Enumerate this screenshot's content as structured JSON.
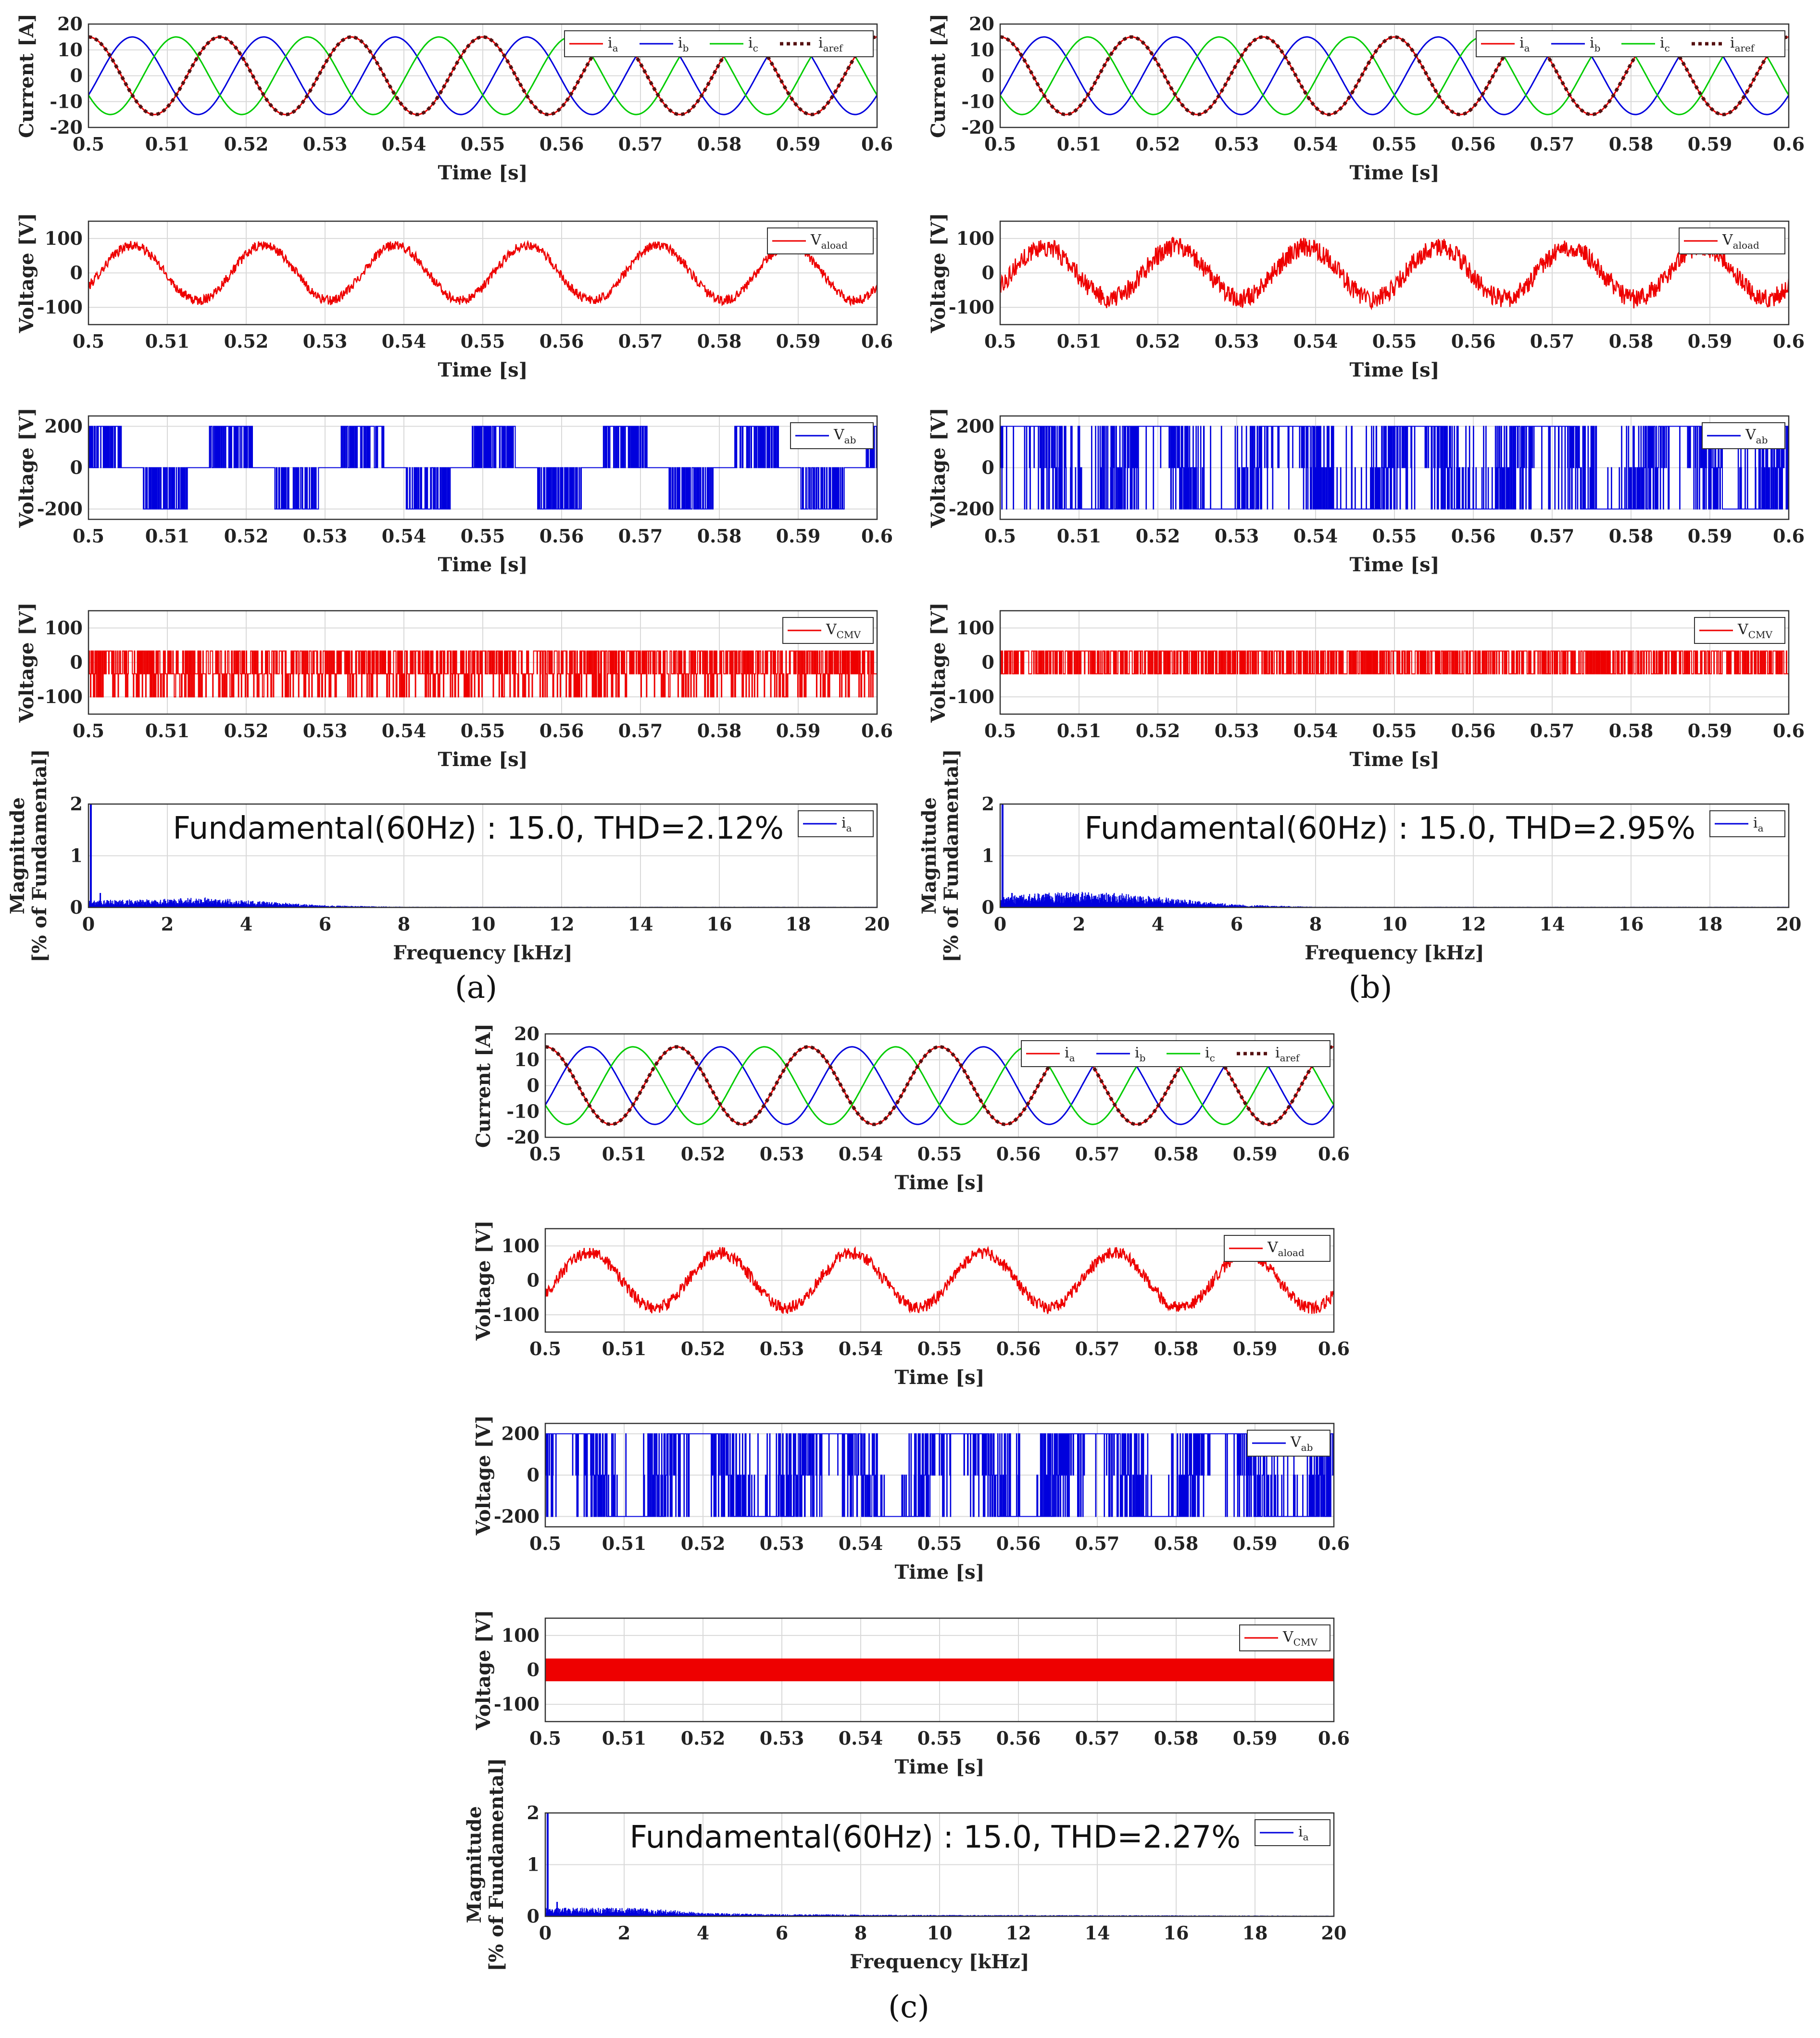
{
  "colors": {
    "red": "#ee0000",
    "blue": "#0000dd",
    "green": "#00cc00",
    "dark": "#551111",
    "grid": "#d9d9d9"
  },
  "figure": {
    "panel_labels": [
      "(a)",
      "(b)",
      "(c)"
    ]
  },
  "chart_data": [
    {
      "panel": "a",
      "row": 0,
      "type": "line",
      "xlabel": "Time [s]",
      "ylabel": "Current [A]",
      "xlim": [
        0.5,
        0.6
      ],
      "ylim": [
        -20,
        20
      ],
      "xticks": [
        "0.5",
        "0.51",
        "0.52",
        "0.53",
        "0.54",
        "0.55",
        "0.56",
        "0.57",
        "0.58",
        "0.59",
        "0.6"
      ],
      "yticks": [
        {
          "v": 20,
          "t": "20"
        },
        {
          "v": 10,
          "t": "10"
        },
        {
          "v": 0,
          "t": "0"
        },
        {
          "v": -10,
          "t": "-10"
        },
        {
          "v": -20,
          "t": "-20"
        }
      ],
      "series": [
        {
          "name": "i_a",
          "label": "i",
          "sub": "a",
          "color": "red",
          "kind": "sine",
          "amp": 15,
          "freq": 60,
          "phase": 90,
          "width": 3
        },
        {
          "name": "i_b",
          "label": "i",
          "sub": "b",
          "color": "blue",
          "kind": "sine",
          "amp": 15,
          "freq": 60,
          "phase": -30,
          "width": 3
        },
        {
          "name": "i_c",
          "label": "i",
          "sub": "c",
          "color": "green",
          "kind": "sine",
          "amp": 15,
          "freq": 60,
          "phase": 210,
          "width": 3
        },
        {
          "name": "i_aref",
          "label": "i",
          "sub": "aref",
          "color": "dark",
          "kind": "sine",
          "amp": 15,
          "freq": 60,
          "phase": 90,
          "width": 7,
          "dash": "7 7"
        }
      ]
    },
    {
      "panel": "a",
      "row": 1,
      "type": "line",
      "xlabel": "Time [s]",
      "ylabel": "Voltage [V]",
      "xlim": [
        0.5,
        0.6
      ],
      "ylim": [
        -150,
        150
      ],
      "xticks": [
        "0.5",
        "0.51",
        "0.52",
        "0.53",
        "0.54",
        "0.55",
        "0.56",
        "0.57",
        "0.58",
        "0.59",
        "0.6"
      ],
      "yticks": [
        {
          "v": 100,
          "t": "100"
        },
        {
          "v": 0,
          "t": "0"
        },
        {
          "v": -100,
          "t": "-100"
        }
      ],
      "series": [
        {
          "name": "V_aload",
          "label": "V",
          "sub": "aload",
          "color": "red",
          "kind": "noisy_sine",
          "amp": 80,
          "freq": 60,
          "phase": -30,
          "noise": 14
        }
      ]
    },
    {
      "panel": "a",
      "row": 2,
      "type": "line",
      "xlabel": "Time [s]",
      "ylabel": "Voltage [V]",
      "xlim": [
        0.5,
        0.6
      ],
      "ylim": [
        -250,
        250
      ],
      "xticks": [
        "0.5",
        "0.51",
        "0.52",
        "0.53",
        "0.54",
        "0.55",
        "0.56",
        "0.57",
        "0.58",
        "0.59",
        "0.6"
      ],
      "yticks": [
        {
          "v": 200,
          "t": "200"
        },
        {
          "v": 0,
          "t": "0"
        },
        {
          "v": -200,
          "t": "-200"
        }
      ],
      "series": [
        {
          "name": "V_ab",
          "label": "V",
          "sub": "ab",
          "color": "blue",
          "kind": "six_step",
          "level": 200,
          "freq": 60,
          "phase": 0,
          "mode": "a"
        }
      ]
    },
    {
      "panel": "a",
      "row": 3,
      "type": "line",
      "xlabel": "Time [s]",
      "ylabel": "Voltage [V]",
      "xlim": [
        0.5,
        0.6
      ],
      "ylim": [
        -150,
        150
      ],
      "xticks": [
        "0.5",
        "0.51",
        "0.52",
        "0.53",
        "0.54",
        "0.55",
        "0.56",
        "0.57",
        "0.58",
        "0.59",
        "0.6"
      ],
      "yticks": [
        {
          "v": 100,
          "t": "100"
        },
        {
          "v": 0,
          "t": "0"
        },
        {
          "v": -100,
          "t": "-100"
        }
      ],
      "series": [
        {
          "name": "V_CMV",
          "label": "V",
          "sub": "CMV",
          "color": "red",
          "kind": "pwm_levels",
          "levels": [
            33,
            -33,
            -100
          ],
          "probs": [
            0.45,
            0.35,
            0.2
          ]
        }
      ]
    },
    {
      "panel": "a",
      "row": 4,
      "type": "spectrum",
      "xlabel": "Frequency [kHz]",
      "ylabel": "Magnitude\n[% of Fundamental]",
      "xlim": [
        0,
        20
      ],
      "ylim": [
        0,
        2
      ],
      "xticks": [
        "0",
        "2",
        "4",
        "6",
        "8",
        "10",
        "12",
        "14",
        "16",
        "18",
        "20"
      ],
      "yticks": [
        {
          "v": 2,
          "t": "2"
        },
        {
          "v": 1,
          "t": "1"
        },
        {
          "v": 0,
          "t": "0"
        }
      ],
      "annotation": "Fundamental(60Hz) : 15.0, THD=2.12%",
      "series": [
        {
          "name": "i_a",
          "label": "i",
          "sub": "a",
          "color": "blue",
          "kind": "spectrum",
          "spike": 2.0,
          "floor": [
            [
              0,
              0.1
            ],
            [
              2,
              0.12
            ],
            [
              3,
              0.14
            ],
            [
              4,
              0.1
            ],
            [
              6,
              0.03
            ],
            [
              8,
              0.01
            ],
            [
              20,
              0.01
            ]
          ]
        }
      ]
    },
    {
      "panel": "b",
      "row": 0,
      "type": "line",
      "xlabel": "Time [s]",
      "ylabel": "Current [A]",
      "xlim": [
        0.5,
        0.6
      ],
      "ylim": [
        -20,
        20
      ],
      "xticks": [
        "0.5",
        "0.51",
        "0.52",
        "0.53",
        "0.54",
        "0.55",
        "0.56",
        "0.57",
        "0.58",
        "0.59",
        "0.6"
      ],
      "yticks": [
        {
          "v": 20,
          "t": "20"
        },
        {
          "v": 10,
          "t": "10"
        },
        {
          "v": 0,
          "t": "0"
        },
        {
          "v": -10,
          "t": "-10"
        },
        {
          "v": -20,
          "t": "-20"
        }
      ],
      "series": [
        {
          "name": "i_a",
          "label": "i",
          "sub": "a",
          "color": "red",
          "kind": "sine",
          "amp": 15,
          "freq": 60,
          "phase": 90,
          "width": 3
        },
        {
          "name": "i_b",
          "label": "i",
          "sub": "b",
          "color": "blue",
          "kind": "sine",
          "amp": 15,
          "freq": 60,
          "phase": -30,
          "width": 3
        },
        {
          "name": "i_c",
          "label": "i",
          "sub": "c",
          "color": "green",
          "kind": "sine",
          "amp": 15,
          "freq": 60,
          "phase": 210,
          "width": 3
        },
        {
          "name": "i_aref",
          "label": "i",
          "sub": "aref",
          "color": "dark",
          "kind": "sine",
          "amp": 15,
          "freq": 60,
          "phase": 90,
          "width": 7,
          "dash": "7 7"
        }
      ]
    },
    {
      "panel": "b",
      "row": 1,
      "type": "line",
      "xlabel": "Time [s]",
      "ylabel": "Voltage [V]",
      "xlim": [
        0.5,
        0.6
      ],
      "ylim": [
        -150,
        150
      ],
      "xticks": [
        "0.5",
        "0.51",
        "0.52",
        "0.53",
        "0.54",
        "0.55",
        "0.56",
        "0.57",
        "0.58",
        "0.59",
        "0.6"
      ],
      "yticks": [
        {
          "v": 100,
          "t": "100"
        },
        {
          "v": 0,
          "t": "0"
        },
        {
          "v": -100,
          "t": "-100"
        }
      ],
      "series": [
        {
          "name": "V_aload",
          "label": "V",
          "sub": "aload",
          "color": "red",
          "kind": "noisy_sine",
          "amp": 75,
          "freq": 60,
          "phase": -30,
          "noise": 28
        }
      ]
    },
    {
      "panel": "b",
      "row": 2,
      "type": "line",
      "xlabel": "Time [s]",
      "ylabel": "Voltage [V]",
      "xlim": [
        0.5,
        0.6
      ],
      "ylim": [
        -250,
        250
      ],
      "xticks": [
        "0.5",
        "0.51",
        "0.52",
        "0.53",
        "0.54",
        "0.55",
        "0.56",
        "0.57",
        "0.58",
        "0.59",
        "0.6"
      ],
      "yticks": [
        {
          "v": 200,
          "t": "200"
        },
        {
          "v": 0,
          "t": "0"
        },
        {
          "v": -200,
          "t": "-200"
        }
      ],
      "series": [
        {
          "name": "V_ab",
          "label": "V",
          "sub": "ab",
          "color": "blue",
          "kind": "six_step",
          "level": 200,
          "freq": 60,
          "phase": 0,
          "mode": "b"
        }
      ]
    },
    {
      "panel": "b",
      "row": 3,
      "type": "line",
      "xlabel": "Time [s]",
      "ylabel": "Voltage [V]",
      "xlim": [
        0.5,
        0.6
      ],
      "ylim": [
        -150,
        150
      ],
      "xticks": [
        "0.5",
        "0.51",
        "0.52",
        "0.53",
        "0.54",
        "0.55",
        "0.56",
        "0.57",
        "0.58",
        "0.59",
        "0.6"
      ],
      "yticks": [
        {
          "v": 100,
          "t": "100"
        },
        {
          "v": 0,
          "t": "0"
        },
        {
          "v": -100,
          "t": "-100"
        }
      ],
      "series": [
        {
          "name": "V_CMV",
          "label": "V",
          "sub": "CMV",
          "color": "red",
          "kind": "pwm_levels",
          "levels": [
            33,
            -33
          ],
          "probs": [
            0.55,
            0.45
          ]
        }
      ]
    },
    {
      "panel": "b",
      "row": 4,
      "type": "spectrum",
      "xlabel": "Frequency [kHz]",
      "ylabel": "Magnitude\n[% of Fundamental]",
      "xlim": [
        0,
        20
      ],
      "ylim": [
        0,
        2
      ],
      "xticks": [
        "0",
        "2",
        "4",
        "6",
        "8",
        "10",
        "12",
        "14",
        "16",
        "18",
        "20"
      ],
      "yticks": [
        {
          "v": 2,
          "t": "2"
        },
        {
          "v": 1,
          "t": "1"
        },
        {
          "v": 0,
          "t": "0"
        }
      ],
      "annotation": "Fundamental(60Hz) : 15.0, THD=2.95%",
      "series": [
        {
          "name": "i_a",
          "label": "i",
          "sub": "a",
          "color": "blue",
          "kind": "spectrum",
          "spike": 2.0,
          "floor": [
            [
              0,
              0.15
            ],
            [
              1,
              0.2
            ],
            [
              2,
              0.22
            ],
            [
              3,
              0.2
            ],
            [
              4,
              0.15
            ],
            [
              6,
              0.04
            ],
            [
              8,
              0.01
            ],
            [
              20,
              0.01
            ]
          ]
        }
      ]
    },
    {
      "panel": "c",
      "row": 0,
      "type": "line",
      "xlabel": "Time [s]",
      "ylabel": "Current [A]",
      "xlim": [
        0.5,
        0.6
      ],
      "ylim": [
        -20,
        20
      ],
      "xticks": [
        "0.5",
        "0.51",
        "0.52",
        "0.53",
        "0.54",
        "0.55",
        "0.56",
        "0.57",
        "0.58",
        "0.59",
        "0.6"
      ],
      "yticks": [
        {
          "v": 20,
          "t": "20"
        },
        {
          "v": 10,
          "t": "10"
        },
        {
          "v": 0,
          "t": "0"
        },
        {
          "v": -10,
          "t": "-10"
        },
        {
          "v": -20,
          "t": "-20"
        }
      ],
      "series": [
        {
          "name": "i_a",
          "label": "i",
          "sub": "a",
          "color": "red",
          "kind": "sine",
          "amp": 15,
          "freq": 60,
          "phase": 90,
          "width": 3
        },
        {
          "name": "i_b",
          "label": "i",
          "sub": "b",
          "color": "blue",
          "kind": "sine",
          "amp": 15,
          "freq": 60,
          "phase": -30,
          "width": 3
        },
        {
          "name": "i_c",
          "label": "i",
          "sub": "c",
          "color": "green",
          "kind": "sine",
          "amp": 15,
          "freq": 60,
          "phase": 210,
          "width": 3
        },
        {
          "name": "i_aref",
          "label": "i",
          "sub": "aref",
          "color": "dark",
          "kind": "sine",
          "amp": 15,
          "freq": 60,
          "phase": 90,
          "width": 7,
          "dash": "7 7"
        }
      ]
    },
    {
      "panel": "c",
      "row": 1,
      "type": "line",
      "xlabel": "Time [s]",
      "ylabel": "Voltage [V]",
      "xlim": [
        0.5,
        0.6
      ],
      "ylim": [
        -150,
        150
      ],
      "xticks": [
        "0.5",
        "0.51",
        "0.52",
        "0.53",
        "0.54",
        "0.55",
        "0.56",
        "0.57",
        "0.58",
        "0.59",
        "0.6"
      ],
      "yticks": [
        {
          "v": 100,
          "t": "100"
        },
        {
          "v": 0,
          "t": "0"
        },
        {
          "v": -100,
          "t": "-100"
        }
      ],
      "series": [
        {
          "name": "V_aload",
          "label": "V",
          "sub": "aload",
          "color": "red",
          "kind": "noisy_sine",
          "amp": 80,
          "freq": 60,
          "phase": -30,
          "noise": 18
        }
      ]
    },
    {
      "panel": "c",
      "row": 2,
      "type": "line",
      "xlabel": "Time [s]",
      "ylabel": "Voltage [V]",
      "xlim": [
        0.5,
        0.6
      ],
      "ylim": [
        -250,
        250
      ],
      "xticks": [
        "0.5",
        "0.51",
        "0.52",
        "0.53",
        "0.54",
        "0.55",
        "0.56",
        "0.57",
        "0.58",
        "0.59",
        "0.6"
      ],
      "yticks": [
        {
          "v": 200,
          "t": "200"
        },
        {
          "v": 0,
          "t": "0"
        },
        {
          "v": -200,
          "t": "-200"
        }
      ],
      "series": [
        {
          "name": "V_ab",
          "label": "V",
          "sub": "ab",
          "color": "blue",
          "kind": "six_step",
          "level": 200,
          "freq": 60,
          "phase": 0,
          "mode": "c"
        }
      ]
    },
    {
      "panel": "c",
      "row": 3,
      "type": "line",
      "xlabel": "Time [s]",
      "ylabel": "Voltage [V]",
      "xlim": [
        0.5,
        0.6
      ],
      "ylim": [
        -150,
        150
      ],
      "xticks": [
        "0.5",
        "0.51",
        "0.52",
        "0.53",
        "0.54",
        "0.55",
        "0.56",
        "0.57",
        "0.58",
        "0.59",
        "0.6"
      ],
      "yticks": [
        {
          "v": 100,
          "t": "100"
        },
        {
          "v": 0,
          "t": "0"
        },
        {
          "v": -100,
          "t": "-100"
        }
      ],
      "series": [
        {
          "name": "V_CMV",
          "label": "V",
          "sub": "CMV",
          "color": "red",
          "kind": "band",
          "lo": -33,
          "hi": 33
        }
      ]
    },
    {
      "panel": "c",
      "row": 4,
      "type": "spectrum",
      "xlabel": "Frequency [kHz]",
      "ylabel": "Magnitude\n[% of Fundamental]",
      "xlim": [
        0,
        20
      ],
      "ylim": [
        0,
        2
      ],
      "xticks": [
        "0",
        "2",
        "4",
        "6",
        "8",
        "10",
        "12",
        "14",
        "16",
        "18",
        "20"
      ],
      "yticks": [
        {
          "v": 2,
          "t": "2"
        },
        {
          "v": 1,
          "t": "1"
        },
        {
          "v": 0,
          "t": "0"
        }
      ],
      "annotation": "Fundamental(60Hz) : 15.0, THD=2.27%",
      "series": [
        {
          "name": "i_a",
          "label": "i",
          "sub": "a",
          "color": "blue",
          "kind": "spectrum",
          "spike": 2.0,
          "floor": [
            [
              0,
              0.12
            ],
            [
              2,
              0.12
            ],
            [
              3,
              0.1
            ],
            [
              4,
              0.05
            ],
            [
              6,
              0.03
            ],
            [
              10,
              0.02
            ],
            [
              20,
              0.01
            ]
          ]
        }
      ]
    }
  ]
}
